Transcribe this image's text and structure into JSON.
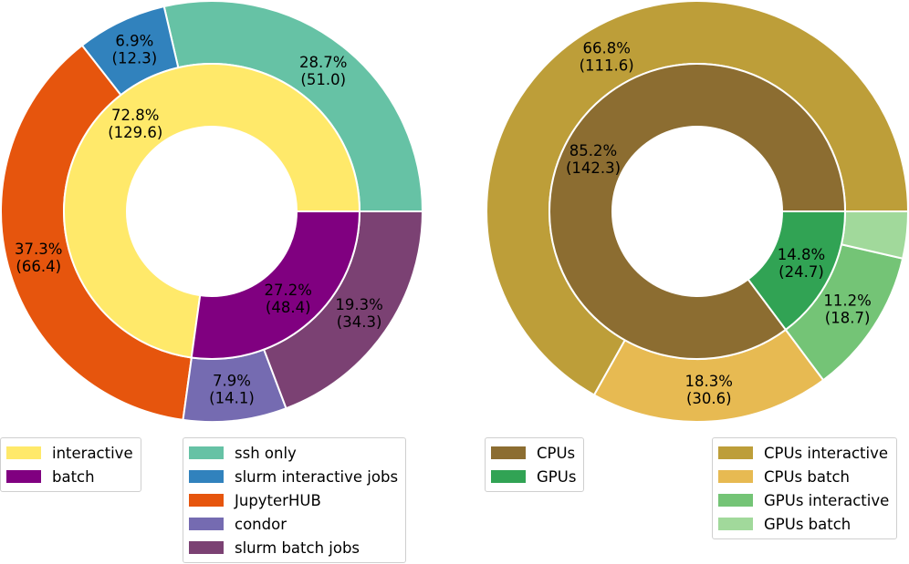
{
  "chart_data": [
    {
      "type": "pie",
      "variant": "nested-donut",
      "title": "",
      "inner_ring": [
        {
          "name": "interactive",
          "value": 129.6,
          "percent": "72.8%",
          "color": "#ffe96a"
        },
        {
          "name": "batch",
          "value": 48.4,
          "percent": "27.2%",
          "color": "#800080"
        }
      ],
      "outer_ring": [
        {
          "name": "ssh only",
          "value": 51.0,
          "percent": "28.7%",
          "color": "#66c2a5"
        },
        {
          "name": "slurm interactive jobs",
          "value": 12.3,
          "percent": "6.9%",
          "color": "#3182bd"
        },
        {
          "name": "JupyterHUB",
          "value": 66.4,
          "percent": "37.3%",
          "color": "#e6550d"
        },
        {
          "name": "condor",
          "value": 14.1,
          "percent": "7.9%",
          "color": "#756bb1"
        },
        {
          "name": "slurm batch jobs",
          "value": 34.3,
          "percent": "19.3%",
          "color": "#7b4173"
        }
      ]
    },
    {
      "type": "pie",
      "variant": "nested-donut",
      "title": "",
      "inner_ring": [
        {
          "name": "CPUs",
          "value": 142.3,
          "percent": "85.2%",
          "color": "#8c6d31"
        },
        {
          "name": "GPUs",
          "value": 24.7,
          "percent": "14.8%",
          "color": "#31a354"
        }
      ],
      "outer_ring": [
        {
          "name": "CPUs interactive",
          "value": 111.6,
          "percent": "66.8%",
          "color": "#bd9e39"
        },
        {
          "name": "CPUs batch",
          "value": 30.6,
          "percent": "18.3%",
          "color": "#e7ba52"
        },
        {
          "name": "GPUs interactive",
          "value": 18.7,
          "percent": "11.2%",
          "color": "#74c476"
        },
        {
          "name": "GPUs batch",
          "value": 6.0,
          "percent": "",
          "color": "#a1d99b"
        }
      ]
    }
  ]
}
